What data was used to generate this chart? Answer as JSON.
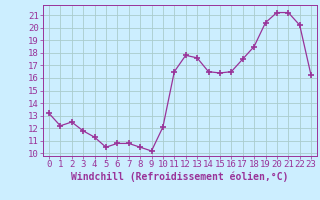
{
  "x": [
    0,
    1,
    2,
    3,
    4,
    5,
    6,
    7,
    8,
    9,
    10,
    11,
    12,
    13,
    14,
    15,
    16,
    17,
    18,
    19,
    20,
    21,
    22,
    23
  ],
  "y": [
    13.2,
    12.2,
    12.5,
    11.8,
    11.3,
    10.5,
    10.8,
    10.8,
    10.5,
    10.2,
    12.1,
    16.5,
    17.8,
    17.6,
    16.5,
    16.4,
    16.5,
    17.5,
    18.5,
    20.4,
    21.2,
    21.2,
    20.2,
    16.2
  ],
  "line_color": "#993399",
  "marker_color": "#993399",
  "bg_color": "#cceeff",
  "grid_color": "#aacccc",
  "axis_color": "#993399",
  "xlabel": "Windchill (Refroidissement éolien,°C)",
  "ylim": [
    9.8,
    21.8
  ],
  "xlim": [
    -0.5,
    23.5
  ],
  "yticks": [
    10,
    11,
    12,
    13,
    14,
    15,
    16,
    17,
    18,
    19,
    20,
    21
  ],
  "xticks": [
    0,
    1,
    2,
    3,
    4,
    5,
    6,
    7,
    8,
    9,
    10,
    11,
    12,
    13,
    14,
    15,
    16,
    17,
    18,
    19,
    20,
    21,
    22,
    23
  ],
  "font_size": 6.5,
  "label_font_size": 7.0
}
